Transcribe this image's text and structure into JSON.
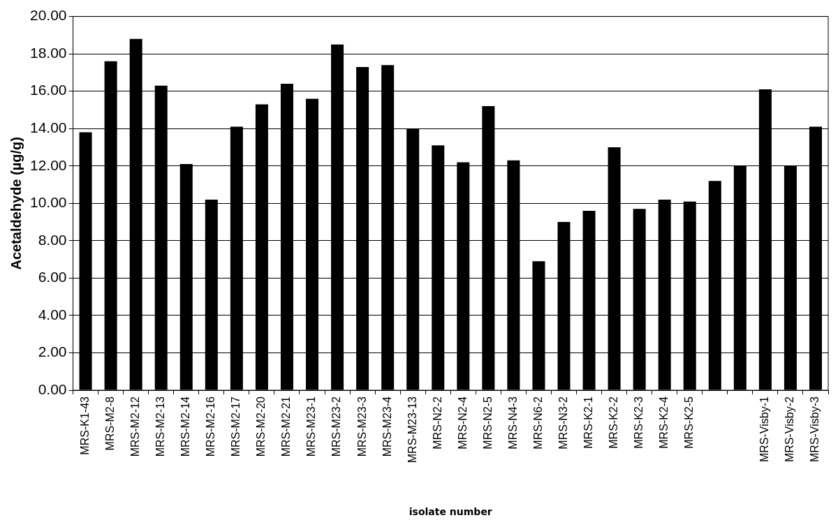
{
  "chart_data": {
    "type": "bar",
    "xlabel": "isolate number",
    "ylabel": "Acetaldehyde (µg/g)",
    "categories": [
      "MRS-K1-43",
      "MRS-M2-8",
      "MRS-M2-12",
      "MRS-M2-13",
      "MRS-M2-14",
      "MRS-M2-16",
      "MRS-M2-17",
      "MRS-M2-20",
      "MRS-M2-21",
      "MRS-M23-1",
      "MRS-M23-2",
      "MRS-M23-3",
      "MRS-M23-4",
      "MRS-M23-13",
      "MRS-N2-2",
      "MRS-N2-4",
      "MRS-N2-5",
      "MRS-N4-3",
      "MRS-N6-2",
      "MRS-N3-2",
      "MRS-K2-1",
      "MRS-K2-2",
      "MRS-K2-3",
      "MRS-K2-4",
      "MRS-K2-5",
      null,
      null,
      "MRS-Visby-1",
      "MRS-Visby-2",
      "MRS-Visby-3"
    ],
    "values": [
      13.8,
      17.6,
      18.8,
      16.3,
      12.1,
      10.2,
      14.1,
      15.3,
      16.4,
      15.6,
      18.5,
      17.3,
      17.4,
      14.0,
      13.1,
      12.2,
      15.2,
      12.3,
      6.9,
      9.0,
      9.6,
      13.0,
      9.7,
      10.2,
      10.1,
      11.2,
      12.0,
      16.1,
      12.0,
      14.1
    ],
    "color": "#000000",
    "ylim": [
      0,
      20
    ],
    "yticks": [
      {
        "value": 0,
        "label": "0.00"
      },
      {
        "value": 2,
        "label": "2.00"
      },
      {
        "value": 4,
        "label": "4.00"
      },
      {
        "value": 6,
        "label": "6.00"
      },
      {
        "value": 8,
        "label": "8.00"
      },
      {
        "value": 10,
        "label": "10.00"
      },
      {
        "value": 12,
        "label": "12.00"
      },
      {
        "value": 14,
        "label": "14.00"
      },
      {
        "value": 16,
        "label": "16.00"
      },
      {
        "value": 18,
        "label": "18.00"
      },
      {
        "value": 20,
        "label": "20.00"
      }
    ],
    "grid": "y",
    "legend": false
  }
}
